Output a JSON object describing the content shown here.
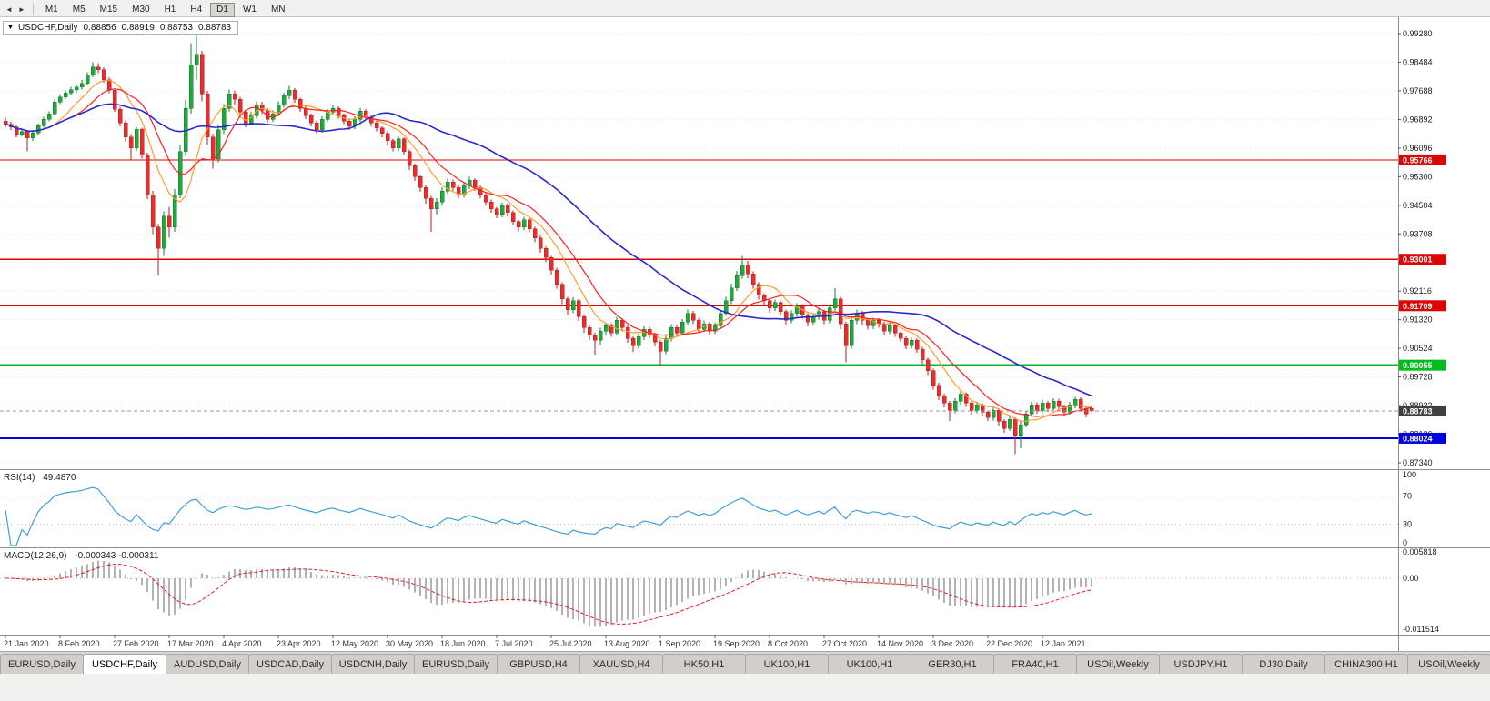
{
  "toolbar": {
    "left_icons": [
      {
        "name": "scroll-left-icon",
        "glyph": "◄"
      },
      {
        "name": "scroll-right-icon",
        "glyph": "►"
      }
    ],
    "timeframes": [
      {
        "label": "M1"
      },
      {
        "label": "M5"
      },
      {
        "label": "M15"
      },
      {
        "label": "M30"
      },
      {
        "label": "H1"
      },
      {
        "label": "H4"
      },
      {
        "label": "D1",
        "active": true
      },
      {
        "label": "W1"
      },
      {
        "label": "MN"
      }
    ]
  },
  "chart_header": {
    "symbol": "USDCHF,Daily",
    "open": "0.88856",
    "high": "0.88919",
    "low": "0.88753",
    "close": "0.88783"
  },
  "price_axis": {
    "labels": [
      "0.99280",
      "0.98484",
      "0.97688",
      "0.96892",
      "0.96096",
      "0.95300",
      "0.94504",
      "0.93708",
      "0.92912",
      "0.92116",
      "0.91320",
      "0.90524",
      "0.89728",
      "0.88932",
      "0.88136",
      "0.87340"
    ]
  },
  "levels": [
    {
      "text": "0.95766",
      "price": 0.95766,
      "color": "#dd0404",
      "width": 1.3
    },
    {
      "text": "0.93001",
      "price": 0.93001,
      "color": "#dd0404",
      "width": 1.3
    },
    {
      "text": "0.91709",
      "price": 0.91709,
      "color": "#dd0404",
      "width": 1.3
    },
    {
      "text": "0.90055",
      "price": 0.90055,
      "color": "#00bb1c",
      "width": 2
    },
    {
      "text": "0.88024",
      "price": 0.88024,
      "color": "#0202dd",
      "width": 2
    }
  ],
  "current_price": {
    "text": "0.88783",
    "price": 0.88783,
    "color": "#404040"
  },
  "rsi_panel": {
    "title": "RSI(14)",
    "value": "49.4870",
    "period": 14,
    "color": "#3fa0d8",
    "axis_labels": [
      "100",
      "70",
      "30",
      "0"
    ],
    "axis_values": [
      100,
      70,
      30,
      0
    ],
    "level_lines": [
      70,
      30
    ],
    "range": [
      0,
      100
    ]
  },
  "macd_panel": {
    "title": "MACD(12,26,9)",
    "values_text": "-0.000343 -0.000311",
    "fast": 12,
    "slow": 26,
    "signal": 9,
    "hist_color": "#b3b3b3",
    "signal_color": "#e02020",
    "axis_labels": [
      {
        "text": "0.005818",
        "value": 0.005818
      },
      {
        "text": "0.00",
        "value": 0
      },
      {
        "text": "-0.011514",
        "value": -0.011514
      }
    ]
  },
  "chart_data": {
    "type": "candlestick",
    "title": "USDCHF,Daily",
    "symbol": "USDCHF",
    "timeframe": "Daily",
    "ylim": [
      0.8734,
      0.9956
    ],
    "label_every": 10,
    "x_labels": [
      "21 Jan 2020",
      "8 Feb 2020",
      "27 Feb 2020",
      "17 Mar 2020",
      "4 Apr 2020",
      "23 Apr 2020",
      "12 May 2020",
      "30 May 2020",
      "18 Jun 2020",
      "7 Jul 2020",
      "25 Jul 2020",
      "13 Aug 2020",
      "1 Sep 2020",
      "19 Sep 2020",
      "8 Oct 2020",
      "27 Oct 2020",
      "14 Nov 2020",
      "3 Dec 2020",
      "22 Dec 2020",
      "12 Jan 2021"
    ],
    "overlays": [
      {
        "name": "ma-fast",
        "type": "sma",
        "period": 8,
        "color": "#ff9c2e"
      },
      {
        "name": "ma-medium",
        "type": "sma",
        "period": 13,
        "color": "#ff1e1e"
      },
      {
        "name": "ma-slow",
        "type": "sma",
        "period": 38,
        "color": "#2929cc"
      }
    ],
    "candles": [
      [
        0.9685,
        0.9694,
        0.9668,
        0.9676
      ],
      [
        0.9676,
        0.9682,
        0.966,
        0.9668
      ],
      [
        0.9668,
        0.9672,
        0.964,
        0.9648
      ],
      [
        0.9648,
        0.9663,
        0.9642,
        0.9656
      ],
      [
        0.9656,
        0.966,
        0.9601,
        0.9638
      ],
      [
        0.9638,
        0.966,
        0.963,
        0.9652
      ],
      [
        0.9652,
        0.9678,
        0.9646,
        0.9672
      ],
      [
        0.9672,
        0.9696,
        0.9666,
        0.969
      ],
      [
        0.969,
        0.9712,
        0.9684,
        0.9705
      ],
      [
        0.9705,
        0.9744,
        0.97,
        0.9738
      ],
      [
        0.9738,
        0.976,
        0.9732,
        0.9752
      ],
      [
        0.9752,
        0.977,
        0.9746,
        0.9763
      ],
      [
        0.9763,
        0.978,
        0.9756,
        0.9772
      ],
      [
        0.9772,
        0.9788,
        0.9764,
        0.978
      ],
      [
        0.978,
        0.9799,
        0.9773,
        0.979
      ],
      [
        0.979,
        0.982,
        0.9784,
        0.9812
      ],
      [
        0.9812,
        0.9848,
        0.9806,
        0.9835
      ],
      [
        0.9835,
        0.9846,
        0.9818,
        0.9828
      ],
      [
        0.9828,
        0.9834,
        0.9792,
        0.98
      ],
      [
        0.98,
        0.9806,
        0.9762,
        0.977
      ],
      [
        0.977,
        0.9774,
        0.971,
        0.9718
      ],
      [
        0.9718,
        0.9724,
        0.967,
        0.968
      ],
      [
        0.968,
        0.9686,
        0.9628,
        0.964
      ],
      [
        0.964,
        0.9648,
        0.9576,
        0.961
      ],
      [
        0.961,
        0.9668,
        0.9602,
        0.9662
      ],
      [
        0.9662,
        0.9666,
        0.958,
        0.959
      ],
      [
        0.959,
        0.9596,
        0.9468,
        0.948
      ],
      [
        0.948,
        0.949,
        0.937,
        0.939
      ],
      [
        0.939,
        0.9398,
        0.9255,
        0.933
      ],
      [
        0.933,
        0.9434,
        0.931,
        0.942
      ],
      [
        0.942,
        0.9446,
        0.936,
        0.939
      ],
      [
        0.939,
        0.9496,
        0.9376,
        0.948
      ],
      [
        0.948,
        0.9618,
        0.947,
        0.96
      ],
      [
        0.96,
        0.9744,
        0.9588,
        0.972
      ],
      [
        0.972,
        0.9901,
        0.9706,
        0.984
      ],
      [
        0.984,
        0.9922,
        0.98,
        0.987
      ],
      [
        0.987,
        0.988,
        0.974,
        0.976
      ],
      [
        0.976,
        0.9768,
        0.962,
        0.964
      ],
      [
        0.964,
        0.965,
        0.9552,
        0.958
      ],
      [
        0.958,
        0.9672,
        0.957,
        0.966
      ],
      [
        0.966,
        0.9732,
        0.9648,
        0.972
      ],
      [
        0.972,
        0.9772,
        0.971,
        0.976
      ],
      [
        0.976,
        0.9768,
        0.973,
        0.9745
      ],
      [
        0.9745,
        0.9752,
        0.9698,
        0.971
      ],
      [
        0.971,
        0.9716,
        0.9668,
        0.968
      ],
      [
        0.968,
        0.971,
        0.9672,
        0.97
      ],
      [
        0.97,
        0.974,
        0.9692,
        0.973
      ],
      [
        0.973,
        0.9738,
        0.9704,
        0.9715
      ],
      [
        0.9715,
        0.972,
        0.968,
        0.969
      ],
      [
        0.969,
        0.9714,
        0.9682,
        0.9705
      ],
      [
        0.9705,
        0.974,
        0.9698,
        0.973
      ],
      [
        0.973,
        0.9764,
        0.9722,
        0.9755
      ],
      [
        0.9755,
        0.9782,
        0.9746,
        0.977
      ],
      [
        0.977,
        0.9776,
        0.9736,
        0.9745
      ],
      [
        0.9745,
        0.975,
        0.971,
        0.972
      ],
      [
        0.972,
        0.9726,
        0.969,
        0.97
      ],
      [
        0.97,
        0.9706,
        0.967,
        0.968
      ],
      [
        0.968,
        0.9686,
        0.965,
        0.966
      ],
      [
        0.966,
        0.9698,
        0.9652,
        0.969
      ],
      [
        0.969,
        0.9718,
        0.9682,
        0.971
      ],
      [
        0.971,
        0.973,
        0.9702,
        0.972
      ],
      [
        0.972,
        0.9726,
        0.9692,
        0.97
      ],
      [
        0.97,
        0.9706,
        0.9676,
        0.9685
      ],
      [
        0.9685,
        0.969,
        0.966,
        0.967
      ],
      [
        0.967,
        0.9698,
        0.9662,
        0.969
      ],
      [
        0.969,
        0.972,
        0.9682,
        0.9712
      ],
      [
        0.9712,
        0.9718,
        0.9686,
        0.9695
      ],
      [
        0.9695,
        0.97,
        0.967,
        0.968
      ],
      [
        0.968,
        0.9686,
        0.9656,
        0.9665
      ],
      [
        0.9665,
        0.967,
        0.964,
        0.965
      ],
      [
        0.965,
        0.9656,
        0.962,
        0.963
      ],
      [
        0.963,
        0.9636,
        0.96,
        0.961
      ],
      [
        0.961,
        0.9642,
        0.9602,
        0.9635
      ],
      [
        0.9635,
        0.964,
        0.959,
        0.96
      ],
      [
        0.96,
        0.9606,
        0.9548,
        0.956
      ],
      [
        0.956,
        0.9566,
        0.9518,
        0.953
      ],
      [
        0.953,
        0.9536,
        0.9488,
        0.95
      ],
      [
        0.95,
        0.9506,
        0.9455,
        0.947
      ],
      [
        0.947,
        0.9476,
        0.9376,
        0.944
      ],
      [
        0.944,
        0.947,
        0.9425,
        0.946
      ],
      [
        0.946,
        0.95,
        0.9452,
        0.949
      ],
      [
        0.949,
        0.9524,
        0.9482,
        0.9515
      ],
      [
        0.9515,
        0.9522,
        0.949,
        0.95
      ],
      [
        0.95,
        0.9506,
        0.947,
        0.948
      ],
      [
        0.948,
        0.9514,
        0.9472,
        0.9505
      ],
      [
        0.9505,
        0.953,
        0.9496,
        0.952
      ],
      [
        0.952,
        0.9526,
        0.949,
        0.95
      ],
      [
        0.95,
        0.9506,
        0.947,
        0.948
      ],
      [
        0.948,
        0.9486,
        0.945,
        0.946
      ],
      [
        0.946,
        0.9466,
        0.943,
        0.944
      ],
      [
        0.944,
        0.9446,
        0.9415,
        0.9425
      ],
      [
        0.9425,
        0.9458,
        0.9417,
        0.945
      ],
      [
        0.945,
        0.9456,
        0.942,
        0.943
      ],
      [
        0.943,
        0.9436,
        0.9395,
        0.9405
      ],
      [
        0.9405,
        0.941,
        0.9378,
        0.939
      ],
      [
        0.939,
        0.9418,
        0.9382,
        0.941
      ],
      [
        0.941,
        0.9416,
        0.9375,
        0.9385
      ],
      [
        0.9385,
        0.939,
        0.9348,
        0.936
      ],
      [
        0.936,
        0.9366,
        0.9318,
        0.933
      ],
      [
        0.933,
        0.9336,
        0.9292,
        0.9305
      ],
      [
        0.9305,
        0.931,
        0.9258,
        0.927
      ],
      [
        0.927,
        0.9276,
        0.9218,
        0.923
      ],
      [
        0.923,
        0.9236,
        0.9176,
        0.919
      ],
      [
        0.919,
        0.9196,
        0.9146,
        0.916
      ],
      [
        0.916,
        0.9194,
        0.915,
        0.9185
      ],
      [
        0.9185,
        0.919,
        0.9128,
        0.914
      ],
      [
        0.914,
        0.9146,
        0.9096,
        0.911
      ],
      [
        0.911,
        0.9118,
        0.9076,
        0.909
      ],
      [
        0.909,
        0.9096,
        0.9035,
        0.9075
      ],
      [
        0.9075,
        0.911,
        0.9062,
        0.91
      ],
      [
        0.91,
        0.9124,
        0.909,
        0.9115
      ],
      [
        0.9115,
        0.9122,
        0.9084,
        0.9095
      ],
      [
        0.9095,
        0.914,
        0.9088,
        0.913
      ],
      [
        0.913,
        0.9136,
        0.91,
        0.911
      ],
      [
        0.911,
        0.9116,
        0.9068,
        0.908
      ],
      [
        0.908,
        0.9086,
        0.9043,
        0.906
      ],
      [
        0.906,
        0.9094,
        0.9052,
        0.9085
      ],
      [
        0.9085,
        0.9114,
        0.9076,
        0.9105
      ],
      [
        0.9105,
        0.9112,
        0.908,
        0.909
      ],
      [
        0.909,
        0.9096,
        0.9058,
        0.907
      ],
      [
        0.907,
        0.9076,
        0.9005,
        0.9045
      ],
      [
        0.9045,
        0.909,
        0.9036,
        0.908
      ],
      [
        0.908,
        0.912,
        0.9072,
        0.911
      ],
      [
        0.911,
        0.9118,
        0.9084,
        0.9095
      ],
      [
        0.9095,
        0.9134,
        0.9088,
        0.9125
      ],
      [
        0.9125,
        0.916,
        0.9116,
        0.915
      ],
      [
        0.915,
        0.9156,
        0.912,
        0.913
      ],
      [
        0.913,
        0.9136,
        0.9095,
        0.9105
      ],
      [
        0.9105,
        0.913,
        0.9098,
        0.912
      ],
      [
        0.912,
        0.9126,
        0.909,
        0.91
      ],
      [
        0.91,
        0.9124,
        0.9092,
        0.9115
      ],
      [
        0.9115,
        0.916,
        0.9108,
        0.915
      ],
      [
        0.915,
        0.9196,
        0.9142,
        0.9185
      ],
      [
        0.9185,
        0.9232,
        0.9176,
        0.922
      ],
      [
        0.922,
        0.9268,
        0.9212,
        0.9255
      ],
      [
        0.9255,
        0.931,
        0.9246,
        0.9285
      ],
      [
        0.9285,
        0.9296,
        0.9248,
        0.926
      ],
      [
        0.926,
        0.9266,
        0.9218,
        0.923
      ],
      [
        0.923,
        0.9236,
        0.9188,
        0.92
      ],
      [
        0.92,
        0.9206,
        0.9174,
        0.9185
      ],
      [
        0.9185,
        0.919,
        0.9152,
        0.9165
      ],
      [
        0.9165,
        0.9188,
        0.9156,
        0.918
      ],
      [
        0.918,
        0.9186,
        0.9145,
        0.9155
      ],
      [
        0.9155,
        0.916,
        0.9118,
        0.913
      ],
      [
        0.913,
        0.9158,
        0.9122,
        0.915
      ],
      [
        0.915,
        0.9178,
        0.914,
        0.917
      ],
      [
        0.917,
        0.9176,
        0.9135,
        0.9145
      ],
      [
        0.9145,
        0.915,
        0.9114,
        0.9125
      ],
      [
        0.9125,
        0.9148,
        0.9116,
        0.914
      ],
      [
        0.914,
        0.9164,
        0.9132,
        0.9155
      ],
      [
        0.9155,
        0.916,
        0.912,
        0.913
      ],
      [
        0.913,
        0.9176,
        0.9122,
        0.9165
      ],
      [
        0.9165,
        0.922,
        0.9156,
        0.919
      ],
      [
        0.919,
        0.9196,
        0.9106,
        0.912
      ],
      [
        0.912,
        0.9126,
        0.9014,
        0.906
      ],
      [
        0.906,
        0.914,
        0.9052,
        0.913
      ],
      [
        0.913,
        0.916,
        0.912,
        0.915
      ],
      [
        0.915,
        0.9156,
        0.9118,
        0.913
      ],
      [
        0.913,
        0.9136,
        0.9104,
        0.9115
      ],
      [
        0.9115,
        0.9138,
        0.9106,
        0.913
      ],
      [
        0.913,
        0.9136,
        0.911,
        0.912
      ],
      [
        0.912,
        0.9126,
        0.909,
        0.91
      ],
      [
        0.91,
        0.9122,
        0.9092,
        0.9115
      ],
      [
        0.9115,
        0.912,
        0.9084,
        0.9095
      ],
      [
        0.9095,
        0.91,
        0.907,
        0.908
      ],
      [
        0.908,
        0.9086,
        0.905,
        0.906
      ],
      [
        0.906,
        0.9082,
        0.9052,
        0.9075
      ],
      [
        0.9075,
        0.908,
        0.904,
        0.905
      ],
      [
        0.905,
        0.9056,
        0.9008,
        0.902
      ],
      [
        0.902,
        0.9026,
        0.8978,
        0.899
      ],
      [
        0.899,
        0.8996,
        0.8938,
        0.895
      ],
      [
        0.895,
        0.8956,
        0.8908,
        0.892
      ],
      [
        0.892,
        0.8926,
        0.8888,
        0.89
      ],
      [
        0.89,
        0.8906,
        0.885,
        0.888
      ],
      [
        0.888,
        0.8914,
        0.8872,
        0.8905
      ],
      [
        0.8905,
        0.8934,
        0.8896,
        0.8925
      ],
      [
        0.8925,
        0.893,
        0.889,
        0.89
      ],
      [
        0.89,
        0.8906,
        0.8868,
        0.888
      ],
      [
        0.888,
        0.8904,
        0.8872,
        0.8895
      ],
      [
        0.8895,
        0.89,
        0.8864,
        0.8875
      ],
      [
        0.8875,
        0.888,
        0.885,
        0.886
      ],
      [
        0.886,
        0.8888,
        0.8852,
        0.888
      ],
      [
        0.888,
        0.8886,
        0.8838,
        0.885
      ],
      [
        0.885,
        0.8856,
        0.8818,
        0.883
      ],
      [
        0.883,
        0.8864,
        0.8822,
        0.8855
      ],
      [
        0.8855,
        0.886,
        0.8758,
        0.881
      ],
      [
        0.881,
        0.885,
        0.8774,
        0.884
      ],
      [
        0.884,
        0.888,
        0.8832,
        0.887
      ],
      [
        0.887,
        0.8904,
        0.8862,
        0.8895
      ],
      [
        0.8895,
        0.8902,
        0.887,
        0.888
      ],
      [
        0.888,
        0.891,
        0.8872,
        0.89
      ],
      [
        0.89,
        0.8906,
        0.8876,
        0.8885
      ],
      [
        0.8885,
        0.8914,
        0.8878,
        0.8905
      ],
      [
        0.8905,
        0.8912,
        0.888,
        0.889
      ],
      [
        0.889,
        0.8896,
        0.8866,
        0.8875
      ],
      [
        0.8875,
        0.8904,
        0.8868,
        0.8895
      ],
      [
        0.8895,
        0.8918,
        0.8886,
        0.891
      ],
      [
        0.891,
        0.8916,
        0.8876,
        0.8885
      ],
      [
        0.8885,
        0.8892,
        0.886,
        0.887
      ],
      [
        0.88856,
        0.88919,
        0.88753,
        0.88783
      ]
    ]
  },
  "tabs": [
    {
      "label": "EURUSD,Daily"
    },
    {
      "label": "USDCHF,Daily",
      "active": true
    },
    {
      "label": "AUDUSD,Daily"
    },
    {
      "label": "USDCAD,Daily"
    },
    {
      "label": "USDCNH,Daily"
    },
    {
      "label": "EURUSD,Daily"
    },
    {
      "label": "GBPUSD,H4"
    },
    {
      "label": "XAUUSD,H4"
    },
    {
      "label": "HK50,H1"
    },
    {
      "label": "UK100,H1"
    },
    {
      "label": "UK100,H1"
    },
    {
      "label": "GER30,H1"
    },
    {
      "label": "FRA40,H1"
    },
    {
      "label": "USOil,Weekly"
    },
    {
      "label": "USDJPY,H1"
    },
    {
      "label": "DJ30,Daily"
    },
    {
      "label": "CHINA300,H1"
    },
    {
      "label": "USOil,Weekly"
    }
  ]
}
